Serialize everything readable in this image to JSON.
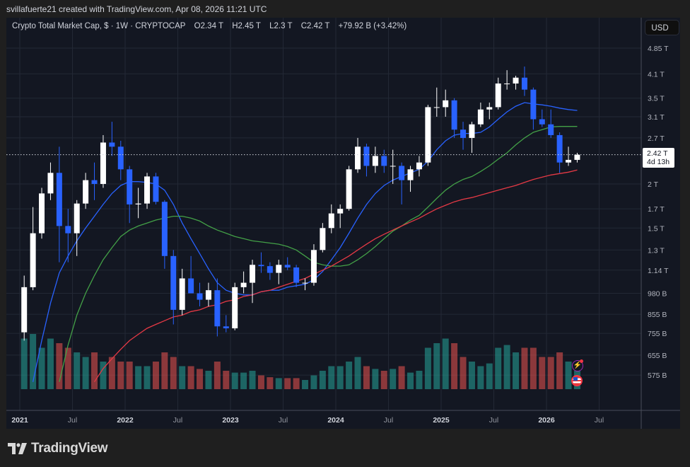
{
  "credit": "svillafuerte21 created with TradingView.com, Apr 08, 2026 11:21 UTC",
  "legend": {
    "symbol": "Crypto Total Market Cap, $ · 1W · CRYPTOCAP",
    "open_label": "O",
    "open": "2.34 T",
    "high_label": "H",
    "high": "2.45 T",
    "low_label": "L",
    "low": "2.3 T",
    "close_label": "C",
    "close": "2.42 T",
    "change": "+79.92 B (+3.42%)"
  },
  "currency_button": "USD",
  "last_price": {
    "value": "2.42 T",
    "countdown": "4d 13h"
  },
  "brand": "TradingView",
  "icons": {
    "event_1": "lightning-icon",
    "event_2": "us-flag-icon"
  },
  "colors": {
    "background": "#131722",
    "up_candle": "#ffffff",
    "down_candle": "#2962ff",
    "volume_up": "#26a69a",
    "volume_down": "#ef5350",
    "ma_blue": "#2962ff",
    "ma_green": "#43a047",
    "ma_red": "#e53945"
  },
  "chart_data": {
    "type": "candlestick",
    "title": "Crypto Total Market Cap, $ · 1W · CRYPTOCAP",
    "y_scale": "log",
    "ylim": [
      0.53,
      5.1
    ],
    "y_unit": "T USD",
    "grid": true,
    "y_ticks": [
      {
        "label": "4.85 T",
        "value": 4.85
      },
      {
        "label": "4.1 T",
        "value": 4.1
      },
      {
        "label": "3.5 T",
        "value": 3.5
      },
      {
        "label": "3.1 T",
        "value": 3.1
      },
      {
        "label": "2.7 T",
        "value": 2.7
      },
      {
        "label": "2 T",
        "value": 2.0
      },
      {
        "label": "1.7 T",
        "value": 1.7
      },
      {
        "label": "1.5 T",
        "value": 1.5
      },
      {
        "label": "1.3 T",
        "value": 1.3
      },
      {
        "label": "1.14 T",
        "value": 1.14
      },
      {
        "label": "980 B",
        "value": 0.98
      },
      {
        "label": "855 B",
        "value": 0.855
      },
      {
        "label": "755 B",
        "value": 0.755
      },
      {
        "label": "655 B",
        "value": 0.655
      },
      {
        "label": "575 B",
        "value": 0.575
      }
    ],
    "x_ticks": [
      {
        "label": "2021",
        "date": "2021-01",
        "major": true
      },
      {
        "label": "Jul",
        "date": "2021-07"
      },
      {
        "label": "2022",
        "date": "2022-01",
        "major": true
      },
      {
        "label": "Jul",
        "date": "2022-07"
      },
      {
        "label": "2023",
        "date": "2023-01",
        "major": true
      },
      {
        "label": "Jul",
        "date": "2023-07"
      },
      {
        "label": "2024",
        "date": "2024-01",
        "major": true
      },
      {
        "label": "Jul",
        "date": "2024-07"
      },
      {
        "label": "2025",
        "date": "2025-01",
        "major": true
      },
      {
        "label": "Jul",
        "date": "2025-07"
      },
      {
        "label": "2026",
        "date": "2026-01",
        "major": true
      },
      {
        "label": "Jul",
        "date": "2026-07"
      }
    ],
    "last_value": 2.42,
    "columns": [
      "date",
      "open",
      "high",
      "low",
      "close",
      "volume_rel"
    ],
    "candles": [
      [
        "2021-01",
        0.76,
        1.1,
        0.72,
        1.02,
        55
      ],
      [
        "2021-02",
        1.02,
        1.72,
        1.0,
        1.45,
        60
      ],
      [
        "2021-03",
        1.45,
        1.95,
        1.4,
        1.88,
        45
      ],
      [
        "2021-04",
        1.88,
        2.3,
        1.8,
        2.15,
        55
      ],
      [
        "2021-05",
        2.15,
        2.55,
        1.2,
        1.52,
        50
      ],
      [
        "2021-06",
        1.52,
        1.7,
        1.2,
        1.45,
        45
      ],
      [
        "2021-07",
        1.45,
        1.8,
        1.25,
        1.76,
        40
      ],
      [
        "2021-08",
        1.76,
        2.15,
        1.7,
        2.05,
        35
      ],
      [
        "2021-09",
        2.05,
        2.3,
        1.8,
        2.0,
        40
      ],
      [
        "2021-10",
        2.0,
        2.75,
        1.95,
        2.62,
        30
      ],
      [
        "2021-11",
        2.62,
        3.0,
        2.4,
        2.55,
        35
      ],
      [
        "2021-12",
        2.55,
        2.65,
        2.05,
        2.2,
        30
      ],
      [
        "2022-01",
        2.2,
        2.25,
        1.55,
        1.75,
        30
      ],
      [
        "2022-02",
        1.75,
        1.95,
        1.6,
        1.76,
        25
      ],
      [
        "2022-03",
        1.76,
        2.15,
        1.7,
        2.1,
        25
      ],
      [
        "2022-04",
        2.1,
        2.15,
        1.75,
        1.78,
        30
      ],
      [
        "2022-05",
        1.78,
        1.8,
        1.15,
        1.25,
        40
      ],
      [
        "2022-06",
        1.25,
        1.3,
        0.8,
        0.88,
        35
      ],
      [
        "2022-07",
        0.88,
        1.15,
        0.85,
        1.08,
        25
      ],
      [
        "2022-08",
        1.08,
        1.25,
        0.98,
        0.98,
        25
      ],
      [
        "2022-09",
        0.98,
        1.05,
        0.9,
        0.94,
        22
      ],
      [
        "2022-10",
        0.94,
        1.05,
        0.9,
        1.0,
        20
      ],
      [
        "2022-11",
        1.0,
        1.08,
        0.74,
        0.79,
        30
      ],
      [
        "2022-12",
        0.79,
        0.85,
        0.76,
        0.78,
        20
      ],
      [
        "2023-01",
        0.78,
        1.05,
        0.77,
        1.02,
        18
      ],
      [
        "2023-02",
        1.02,
        1.13,
        0.98,
        1.05,
        18
      ],
      [
        "2023-03",
        1.05,
        1.22,
        0.92,
        1.18,
        20
      ],
      [
        "2023-04",
        1.18,
        1.28,
        1.12,
        1.17,
        15
      ],
      [
        "2023-05",
        1.17,
        1.2,
        1.07,
        1.12,
        13
      ],
      [
        "2023-06",
        1.12,
        1.22,
        1.04,
        1.18,
        12
      ],
      [
        "2023-07",
        1.18,
        1.24,
        1.14,
        1.16,
        12
      ],
      [
        "2023-08",
        1.16,
        1.18,
        1.02,
        1.05,
        12
      ],
      [
        "2023-09",
        1.05,
        1.08,
        1.0,
        1.05,
        10
      ],
      [
        "2023-10",
        1.05,
        1.35,
        1.03,
        1.3,
        15
      ],
      [
        "2023-11",
        1.3,
        1.55,
        1.28,
        1.5,
        20
      ],
      [
        "2023-12",
        1.5,
        1.75,
        1.45,
        1.65,
        25
      ],
      [
        "2024-01",
        1.65,
        1.75,
        1.5,
        1.7,
        25
      ],
      [
        "2024-02",
        1.7,
        2.25,
        1.68,
        2.2,
        30
      ],
      [
        "2024-03",
        2.2,
        2.7,
        2.15,
        2.55,
        35
      ],
      [
        "2024-04",
        2.55,
        2.6,
        2.1,
        2.25,
        25
      ],
      [
        "2024-05",
        2.25,
        2.55,
        2.15,
        2.4,
        22
      ],
      [
        "2024-06",
        2.4,
        2.5,
        2.15,
        2.25,
        20
      ],
      [
        "2024-07",
        2.25,
        2.5,
        2.0,
        2.25,
        22
      ],
      [
        "2024-08",
        2.25,
        2.3,
        1.75,
        2.05,
        25
      ],
      [
        "2024-09",
        2.05,
        2.25,
        1.9,
        2.2,
        18
      ],
      [
        "2024-10",
        2.2,
        2.4,
        2.1,
        2.3,
        20
      ],
      [
        "2024-11",
        2.3,
        3.35,
        2.25,
        3.3,
        45
      ],
      [
        "2024-12",
        3.3,
        3.75,
        3.1,
        3.3,
        50
      ],
      [
        "2025-01",
        3.3,
        3.7,
        3.1,
        3.45,
        55
      ],
      [
        "2025-02",
        3.45,
        3.5,
        2.7,
        2.85,
        50
      ],
      [
        "2025-03",
        2.85,
        3.0,
        2.5,
        2.7,
        35
      ],
      [
        "2025-04",
        2.7,
        3.0,
        2.45,
        2.95,
        30
      ],
      [
        "2025-05",
        2.95,
        3.4,
        2.9,
        3.25,
        25
      ],
      [
        "2025-06",
        3.25,
        3.4,
        3.05,
        3.3,
        28
      ],
      [
        "2025-07",
        3.3,
        4.0,
        3.25,
        3.85,
        45
      ],
      [
        "2025-08",
        3.85,
        4.2,
        3.7,
        3.85,
        48
      ],
      [
        "2025-09",
        3.85,
        4.05,
        3.7,
        4.0,
        40
      ],
      [
        "2025-10",
        4.0,
        4.3,
        3.55,
        3.7,
        45
      ],
      [
        "2025-11",
        3.7,
        3.75,
        2.85,
        3.05,
        45
      ],
      [
        "2025-12",
        3.05,
        3.25,
        2.9,
        2.95,
        35
      ],
      [
        "2026-01",
        2.95,
        3.25,
        2.7,
        2.75,
        35
      ],
      [
        "2026-02",
        2.75,
        2.8,
        2.15,
        2.3,
        40
      ],
      [
        "2026-03",
        2.3,
        2.55,
        2.25,
        2.34,
        30
      ],
      [
        "2026-04",
        2.34,
        2.45,
        2.3,
        2.42,
        20
      ]
    ],
    "moving_averages": [
      {
        "color": "#2962ff",
        "start": "2021-02",
        "values": [
          0.55,
          0.72,
          0.92,
          1.12,
          1.25,
          1.38,
          1.5,
          1.62,
          1.75,
          1.88,
          1.98,
          2.03,
          2.03,
          2.02,
          2.0,
          1.92,
          1.75,
          1.55,
          1.4,
          1.27,
          1.15,
          1.05,
          1.0,
          0.98,
          0.97,
          0.97,
          0.99,
          1.0,
          1.0,
          1.02,
          1.03,
          1.04,
          1.07,
          1.13,
          1.22,
          1.32,
          1.45,
          1.6,
          1.75,
          1.88,
          1.98,
          2.05,
          2.1,
          2.15,
          2.2,
          2.32,
          2.5,
          2.65,
          2.75,
          2.78,
          2.78,
          2.8,
          2.9,
          3.05,
          3.2,
          3.32,
          3.4,
          3.37,
          3.35,
          3.32,
          3.28,
          3.25,
          3.23
        ]
      },
      {
        "color": "#43a047",
        "start": "2021-05",
        "values": [
          0.55,
          0.7,
          0.85,
          0.98,
          1.1,
          1.22,
          1.32,
          1.42,
          1.48,
          1.52,
          1.55,
          1.58,
          1.6,
          1.62,
          1.62,
          1.6,
          1.57,
          1.52,
          1.48,
          1.45,
          1.42,
          1.4,
          1.38,
          1.37,
          1.36,
          1.35,
          1.33,
          1.3,
          1.25,
          1.2,
          1.18,
          1.17,
          1.17,
          1.18,
          1.22,
          1.27,
          1.33,
          1.4,
          1.47,
          1.52,
          1.58,
          1.63,
          1.72,
          1.82,
          1.92,
          2.0,
          2.06,
          2.1,
          2.17,
          2.25,
          2.35,
          2.45,
          2.58,
          2.7,
          2.8,
          2.85,
          2.9,
          2.91,
          2.91,
          2.91
        ]
      },
      {
        "color": "#e53945",
        "start": "2021-09",
        "values": [
          0.55,
          0.6,
          0.64,
          0.68,
          0.72,
          0.75,
          0.78,
          0.8,
          0.82,
          0.84,
          0.85,
          0.87,
          0.88,
          0.9,
          0.91,
          0.93,
          0.94,
          0.96,
          0.97,
          0.99,
          1.0,
          1.02,
          1.04,
          1.06,
          1.08,
          1.11,
          1.14,
          1.17,
          1.21,
          1.25,
          1.3,
          1.35,
          1.4,
          1.44,
          1.48,
          1.52,
          1.56,
          1.6,
          1.65,
          1.7,
          1.74,
          1.78,
          1.81,
          1.83,
          1.86,
          1.89,
          1.92,
          1.95,
          1.98,
          2.02,
          2.06,
          2.09,
          2.12,
          2.14,
          2.16,
          2.19
        ]
      }
    ]
  }
}
